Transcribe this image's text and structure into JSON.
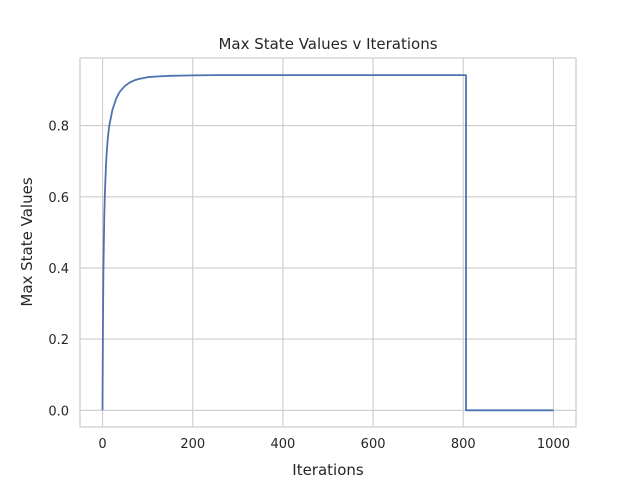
{
  "chart_data": {
    "type": "line",
    "title": "Max State Values v Iterations",
    "xlabel": "Iterations",
    "ylabel": "Max State Values",
    "xlim": [
      -50,
      1050
    ],
    "ylim": [
      -0.047,
      0.99
    ],
    "xticks": [
      0,
      200,
      400,
      600,
      800,
      1000
    ],
    "yticks": [
      0.0,
      0.2,
      0.4,
      0.6,
      0.8
    ],
    "xtick_labels": [
      "0",
      "200",
      "400",
      "600",
      "800",
      "1000"
    ],
    "ytick_labels": [
      "0.0",
      "0.2",
      "0.4",
      "0.6",
      "0.8"
    ],
    "grid": true,
    "legend": "none",
    "color": "#4c72b0",
    "series": [
      {
        "x": [
          0,
          1,
          2,
          3,
          4,
          5,
          6,
          8,
          10,
          12,
          15,
          18,
          22,
          26,
          30,
          35,
          40,
          50,
          60,
          70,
          80,
          100,
          120,
          150,
          200,
          250,
          300,
          400,
          500,
          600,
          700,
          806,
          806,
          900,
          1000
        ],
        "y": [
          0.0,
          0.26,
          0.39,
          0.48,
          0.55,
          0.6,
          0.64,
          0.7,
          0.74,
          0.77,
          0.8,
          0.82,
          0.845,
          0.86,
          0.875,
          0.888,
          0.898,
          0.912,
          0.921,
          0.927,
          0.931,
          0.936,
          0.938,
          0.94,
          0.941,
          0.942,
          0.942,
          0.942,
          0.942,
          0.942,
          0.942,
          0.942,
          0.0,
          0.0,
          0.0
        ]
      }
    ]
  }
}
